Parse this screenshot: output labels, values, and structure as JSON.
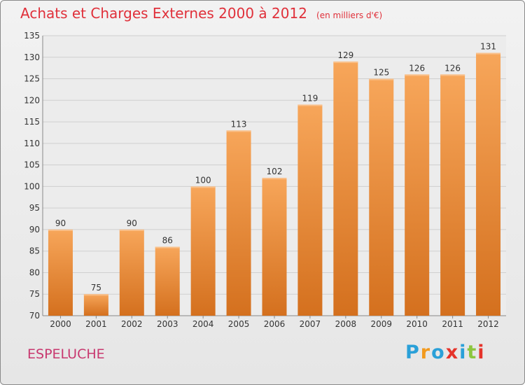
{
  "chart_data": {
    "type": "bar",
    "title": "Achats et Charges Externes 2000 à 2012",
    "subtitle": "(en milliers d'€)",
    "xlabel": "",
    "ylabel": "",
    "categories": [
      "2000",
      "2001",
      "2002",
      "2003",
      "2004",
      "2005",
      "2006",
      "2007",
      "2008",
      "2009",
      "2010",
      "2011",
      "2012"
    ],
    "values": [
      90,
      75,
      90,
      86,
      100,
      113,
      102,
      119,
      129,
      125,
      126,
      126,
      131
    ],
    "ylim": [
      70,
      135
    ],
    "yticks": [
      70,
      75,
      80,
      85,
      90,
      95,
      100,
      105,
      110,
      115,
      120,
      125,
      130,
      135
    ],
    "grid": true,
    "bar_color_top": "#f7a65a",
    "bar_color_bottom": "#d4701e"
  },
  "place": "ESPELUCHE",
  "brand": {
    "letters": [
      "P",
      "r",
      "o",
      "x",
      "i",
      "t",
      "i"
    ],
    "colors": [
      "#2aa0d8",
      "#f29a1e",
      "#2aa0d8",
      "#e5332a",
      "#2aa0d8",
      "#8cc63f",
      "#e5332a"
    ]
  }
}
